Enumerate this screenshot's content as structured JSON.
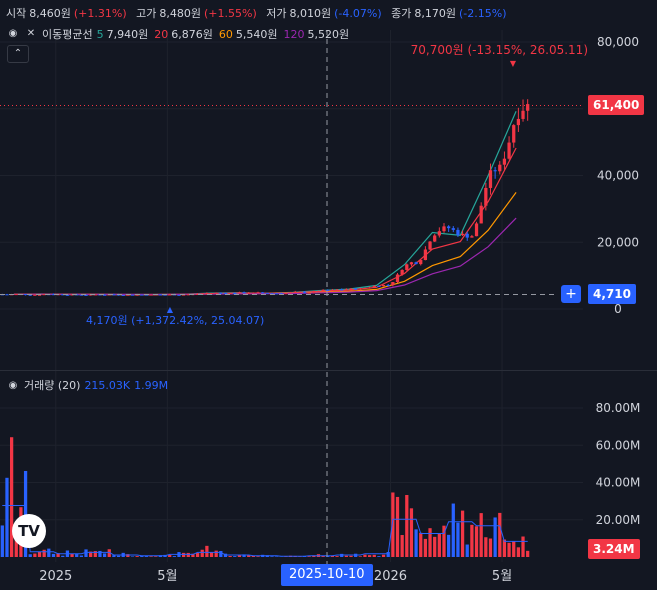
{
  "ohlc": {
    "open_label": "시작",
    "open": "8,460원",
    "open_chg": "(+1.31%)",
    "high_label": "고가",
    "high": "8,480원",
    "high_chg": "(+1.55%)",
    "low_label": "저가",
    "low": "8,010원",
    "low_chg": "(-4.07%)",
    "close_label": "종가",
    "close": "8,170원",
    "close_chg": "(-2.15%)"
  },
  "ma": {
    "label": "이동평균선",
    "items": [
      {
        "period": "5",
        "value": "7,940원",
        "color": "#26a69a"
      },
      {
        "period": "20",
        "value": "6,876원",
        "color": "#f23645"
      },
      {
        "period": "60",
        "value": "5,540원",
        "color": "#ff9800"
      },
      {
        "period": "120",
        "value": "5,520원",
        "color": "#9c27b0"
      }
    ]
  },
  "volume": {
    "label": "거래량 (20)",
    "value1": "215.03K",
    "value2": "1.99M"
  },
  "price_axis": [
    "80,000",
    "60,000",
    "40,000",
    "20,000",
    "0"
  ],
  "volume_axis": [
    "80.00M",
    "60.00M",
    "40.00M",
    "20.00M"
  ],
  "time_axis": [
    "2025",
    "5월",
    "2026",
    "5월"
  ],
  "crosshair_date": "2025-10-10",
  "last_price_tag": "61,400",
  "cursor_price_tag": "4,710",
  "last_volume_tag": "3.24M",
  "high_annotation": "70,700원 (-13.15%, 26.05.11)",
  "low_annotation": "4,170원 (+1,372.42%, 25.04.07)",
  "logo_text": "TV",
  "colors": {
    "up": "#f23645",
    "down": "#2962ff",
    "ma5": "#26a69a",
    "ma20": "#f23645",
    "ma60": "#ff9800",
    "ma120": "#9c27b0",
    "volume_ma": "#2962ff"
  },
  "chart_data": {
    "type": "candlestick",
    "price_ylim": [
      0,
      80000
    ],
    "volume_ylim": [
      0,
      80000000
    ],
    "x": [
      "2024-11",
      "2024-12",
      "2025-01",
      "2025-02",
      "2025-03",
      "2025-04",
      "2025-05",
      "2025-06",
      "2025-07",
      "2025-08",
      "2025-09",
      "2025-10",
      "2025-11",
      "2025-12",
      "2026-01",
      "2026-02",
      "2026-03",
      "2026-04",
      "2026-05"
    ],
    "close_approx": [
      4400,
      4500,
      4300,
      4350,
      4300,
      4300,
      4400,
      4800,
      4900,
      4700,
      5000,
      5600,
      6000,
      7200,
      14000,
      24000,
      22000,
      42000,
      61400
    ],
    "volume_peak_approx": [
      79000000,
      8000000,
      5000000,
      7000000,
      3000000,
      2000000,
      4000000,
      7000000,
      3000000,
      2000000,
      1000000,
      2000000,
      3000000,
      5000000,
      58000000,
      36000000,
      54000000,
      48000000,
      24000000
    ],
    "high": 70700,
    "low": 4170,
    "last_close": 61400,
    "last_volume": 3240000
  }
}
